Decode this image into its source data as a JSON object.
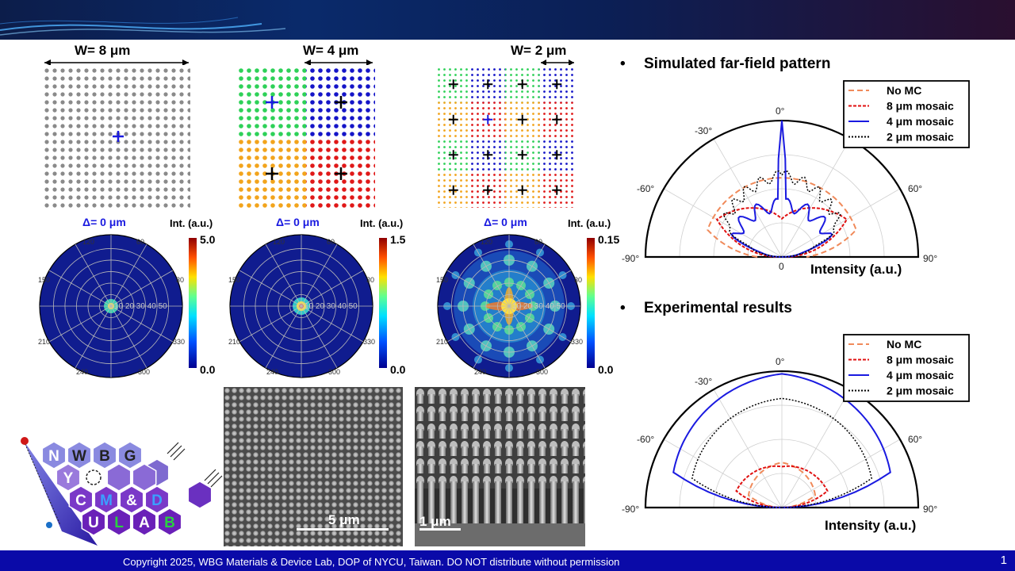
{
  "patterns": [
    {
      "w_label": "W= 8 μm"
    },
    {
      "w_label": "W= 4 μm"
    },
    {
      "w_label": "W= 2 μm"
    }
  ],
  "polar_maps": [
    {
      "delta": "Δ= 0 μm",
      "int_label": "Int. (a.u.)",
      "cb_max": "5.0",
      "cb_min": "0.0"
    },
    {
      "delta": "Δ= 0 μm",
      "int_label": "Int. (a.u.)",
      "cb_max": "1.5",
      "cb_min": "0.0"
    },
    {
      "delta": "Δ= 0 μm",
      "int_label": "Int. (a.u.)",
      "cb_max": "0.15",
      "cb_min": "0.0"
    }
  ],
  "polar_angle_ticks": [
    "120",
    "60",
    "150",
    "30",
    "210",
    "330",
    "240",
    "300"
  ],
  "polar_radius_ticks": "10 20 30 40 50",
  "sem": {
    "top_scale": "5 μm",
    "tilt_scale": "1 μm"
  },
  "logo": {
    "letters": [
      "N",
      "W",
      "B",
      "G",
      "Y",
      "C",
      "M",
      "&",
      "D",
      "U",
      "L",
      "A",
      "B"
    ]
  },
  "colors": {
    "accent_blue": "#0a0aa8",
    "no_mc": "#f08a5a",
    "mosaic_8": "#e01010",
    "mosaic_4": "#1a1ae0",
    "mosaic_2": "#000000"
  },
  "right_panel": {
    "sim_title": "Simulated far-field pattern",
    "exp_title": "Experimental results",
    "bullet": "•",
    "legend": [
      "No MC",
      "8 μm mosaic",
      "4 μm mosaic",
      "2 μm mosaic"
    ],
    "angles": {
      "a0": "0°",
      "am30": "-30°",
      "a30": "30°",
      "am60": "-60°",
      "a60": "60°",
      "am90": "-90°",
      "a90": "90°"
    },
    "radial_zero": "0",
    "intensity_label": "Intensity (a.u.)"
  },
  "footer": {
    "copyright": "Copyright 2025, WBG Materials & Device Lab, DOP of NYCU, Taiwan. DO NOT distribute without permission",
    "page": "1"
  }
}
